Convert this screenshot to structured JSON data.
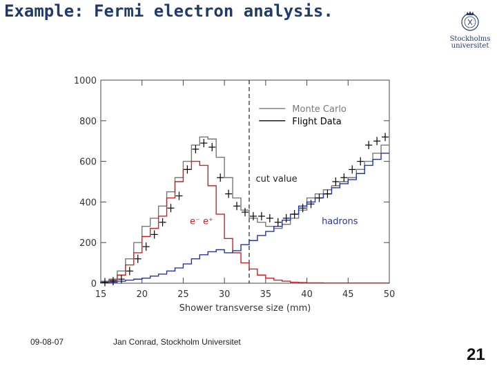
{
  "slide": {
    "title": "Example: Fermi electron analysis.",
    "footer_date": "09-08-07",
    "footer_author": "Jan Conrad, Stockholm Universitet",
    "page_number": "21",
    "logo_line1": "Stockholms",
    "logo_line2": "universitet"
  },
  "chart_data": {
    "type": "line",
    "xlabel": "Shower transverse size (mm)",
    "ylabel": "",
    "xlim": [
      15,
      50
    ],
    "ylim": [
      0,
      1000
    ],
    "xticks": [
      15,
      20,
      25,
      30,
      35,
      40,
      45,
      50
    ],
    "yticks": [
      0,
      200,
      400,
      600,
      800,
      1000
    ],
    "grid": false,
    "legend_position": "top-right",
    "legend": [
      {
        "label": "Monte Carlo",
        "color": "#777777"
      },
      {
        "label": "Flight Data",
        "color": "#000000"
      }
    ],
    "annotations": [
      {
        "text": "cut value",
        "x": 33.8,
        "y": 500,
        "color": "#222222"
      },
      {
        "text": "e⁻ e⁺",
        "x": 25.8,
        "y": 290,
        "color": "#cc2222"
      },
      {
        "text": "hadrons",
        "x": 41.8,
        "y": 290,
        "color": "#2233aa"
      }
    ],
    "cut_value_x": 33,
    "bin_edges": [
      15,
      16,
      17,
      18,
      19,
      20,
      21,
      22,
      23,
      24,
      25,
      26,
      27,
      28,
      29,
      30,
      31,
      32,
      33,
      34,
      35,
      36,
      37,
      38,
      39,
      40,
      41,
      42,
      43,
      44,
      45,
      46,
      47,
      48,
      49,
      50
    ],
    "series": [
      {
        "name": "Monte Carlo",
        "color": "#777777",
        "values": [
          10,
          20,
          60,
          120,
          200,
          280,
          320,
          380,
          450,
          520,
          600,
          680,
          720,
          710,
          620,
          520,
          420,
          360,
          320,
          300,
          280,
          270,
          290,
          320,
          360,
          420,
          440,
          460,
          480,
          500,
          520,
          560,
          600,
          640,
          680
        ]
      },
      {
        "name": "e⁻ e⁺",
        "color": "#cc2222",
        "values": [
          5,
          15,
          40,
          90,
          150,
          230,
          270,
          330,
          420,
          500,
          560,
          600,
          580,
          480,
          340,
          220,
          150,
          100,
          70,
          40,
          25,
          15,
          10,
          5,
          3,
          2,
          2,
          1,
          1,
          1,
          1,
          1,
          1,
          1,
          1
        ]
      },
      {
        "name": "hadrons",
        "color": "#2233aa",
        "values": [
          5,
          5,
          10,
          15,
          20,
          25,
          35,
          45,
          60,
          75,
          95,
          120,
          140,
          155,
          165,
          150,
          160,
          190,
          210,
          235,
          255,
          280,
          310,
          340,
          380,
          400,
          420,
          440,
          470,
          490,
          510,
          540,
          580,
          610,
          640
        ]
      }
    ],
    "flight_data": {
      "name": "Flight Data",
      "color": "#000000",
      "x": [
        15.5,
        16.5,
        17.5,
        18.5,
        19.5,
        20.5,
        21.5,
        22.5,
        23.5,
        24.5,
        25.5,
        26.5,
        27.5,
        28.5,
        29.5,
        30.5,
        31.5,
        32.5,
        33.5,
        34.5,
        35.5,
        36.5,
        37.5,
        38.5,
        39.5,
        40.5,
        41.5,
        42.5,
        43.5,
        44.5,
        45.5,
        46.5,
        47.5,
        48.5,
        49.5
      ],
      "y": [
        5,
        10,
        20,
        60,
        120,
        180,
        240,
        300,
        370,
        430,
        560,
        660,
        690,
        670,
        520,
        440,
        380,
        350,
        330,
        330,
        320,
        300,
        320,
        340,
        370,
        390,
        420,
        440,
        500,
        520,
        560,
        600,
        680,
        700,
        720
      ]
    }
  }
}
